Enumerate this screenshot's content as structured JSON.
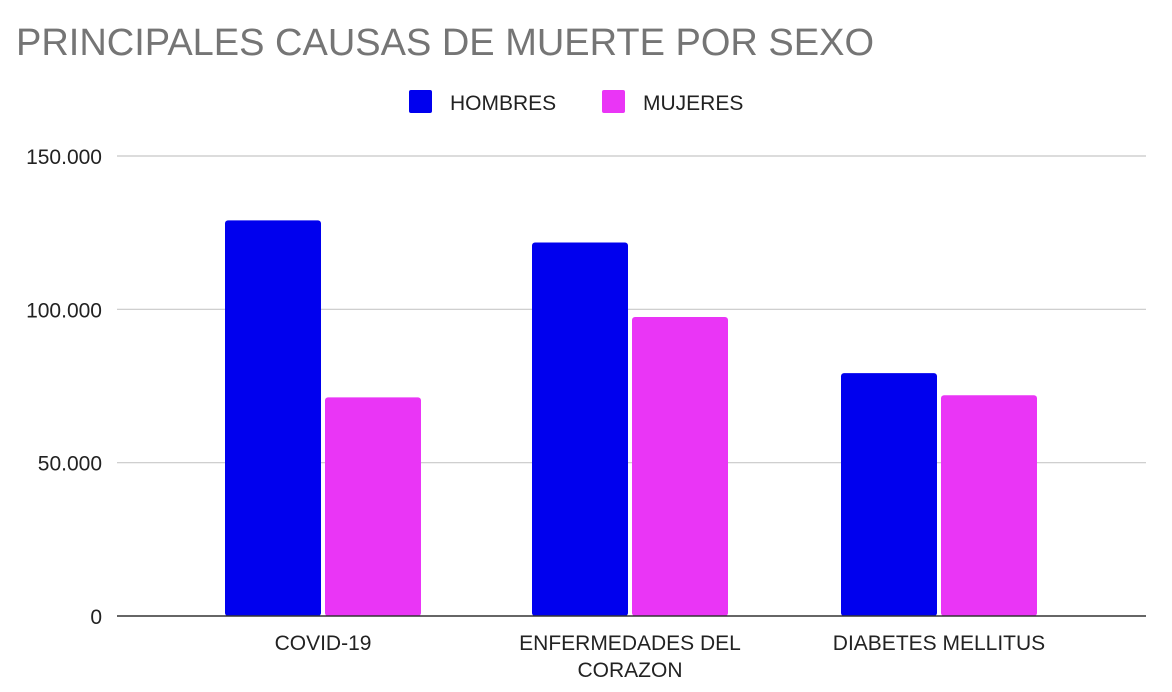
{
  "chart_data": {
    "type": "bar",
    "title": "PRINCIPALES CAUSAS DE MUERTE POR SEXO",
    "categories": [
      [
        "COVID-19"
      ],
      [
        "ENFERMEDADES DEL",
        "CORAZON"
      ],
      [
        "DIABETES MELLITUS"
      ]
    ],
    "series": [
      {
        "name": "HOMBRES",
        "color": "#0000ee",
        "values": [
          129000,
          121800,
          79200
        ]
      },
      {
        "name": "MUJERES",
        "color": "#ea35f6",
        "values": [
          71300,
          97500,
          72000
        ]
      }
    ],
    "yticks": [
      {
        "value": 0,
        "label": "0"
      },
      {
        "value": 50000,
        "label": "50.000"
      },
      {
        "value": 100000,
        "label": "100.000"
      },
      {
        "value": 150000,
        "label": "150.000"
      }
    ],
    "ylim": [
      0,
      150000
    ],
    "xlabel": "",
    "ylabel": "",
    "grid": true,
    "legend_position": "top-center",
    "colors": {
      "title": "#757575",
      "gridline": "#c8c8c8",
      "baseline": "#333333",
      "text": "#222222"
    }
  }
}
